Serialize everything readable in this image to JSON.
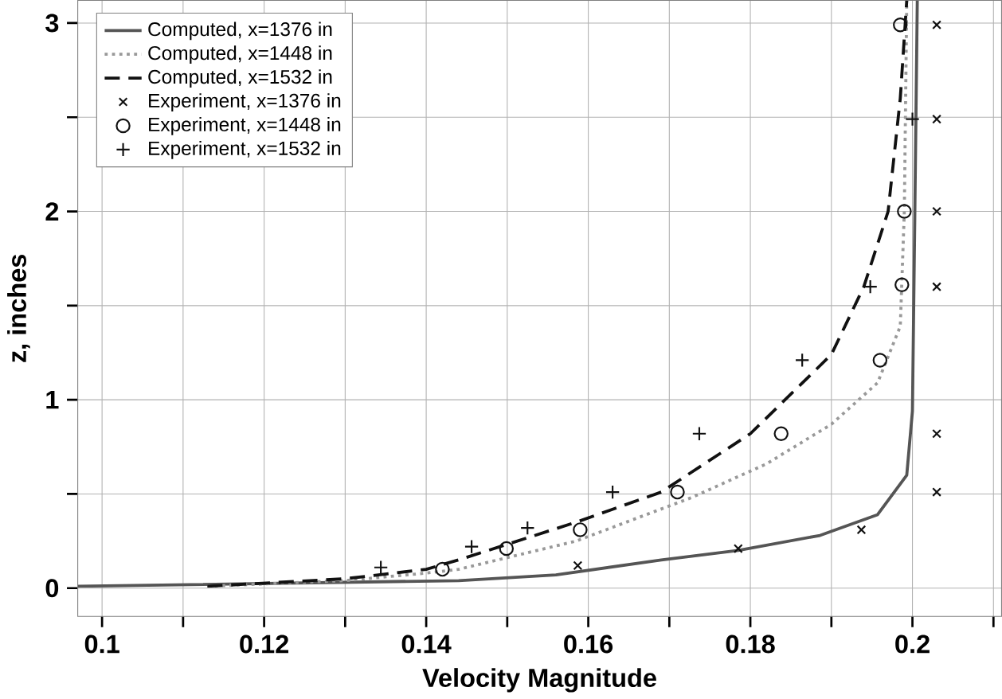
{
  "chart_data": {
    "type": "line",
    "xlabel": "Velocity Magnitude",
    "ylabel": "z, inches",
    "xlim": [
      0.097,
      0.211
    ],
    "ylim": [
      -0.15,
      3.12
    ],
    "xticks": [
      0.1,
      {
        "value": 0.11,
        "label": null
      },
      0.12,
      {
        "value": 0.13,
        "label": null
      },
      0.14,
      {
        "value": 0.15,
        "label": null
      },
      0.16,
      {
        "value": 0.17,
        "label": null
      },
      0.18,
      {
        "value": 0.19,
        "label": null
      },
      0.2,
      {
        "value": 0.21,
        "label": null
      }
    ],
    "yticks": [
      0,
      {
        "value": 0.5,
        "label": null
      },
      1,
      {
        "value": 1.5,
        "label": null
      },
      2,
      {
        "value": 2.5,
        "label": null
      },
      3
    ],
    "grid": true,
    "legend": "top left",
    "series": [
      {
        "name": "Computed, x=1376 in",
        "line_style": "solid",
        "color": "#555555",
        "x": [
          0.097,
          0.144,
          0.156,
          0.169,
          0.1785,
          0.1886,
          0.1957,
          0.1993,
          0.2,
          0.2003,
          0.2006
        ],
        "values": [
          0.01,
          0.04,
          0.07,
          0.15,
          0.2,
          0.28,
          0.39,
          0.6,
          0.94,
          2.0,
          3.12
        ]
      },
      {
        "name": "Computed, x=1448 in",
        "line_style": "dotted",
        "color": "#999999",
        "x": [
          0.113,
          0.13,
          0.14,
          0.144,
          0.1585,
          0.1727,
          0.182,
          0.19,
          0.1957,
          0.1985,
          0.199,
          0.1993
        ],
        "values": [
          0.01,
          0.04,
          0.08,
          0.1,
          0.25,
          0.48,
          0.66,
          0.87,
          1.09,
          1.39,
          2.0,
          3.12
        ]
      },
      {
        "name": "Computed, x=1532 in",
        "line_style": "dashed",
        "color": "#111111",
        "x": [
          0.113,
          0.13,
          0.14,
          0.144,
          0.1585,
          0.169,
          0.18,
          0.19,
          0.194,
          0.197,
          0.1985,
          0.1993
        ],
        "values": [
          0.01,
          0.05,
          0.1,
          0.15,
          0.35,
          0.51,
          0.82,
          1.24,
          1.6,
          2.0,
          2.6,
          3.12
        ]
      },
      {
        "name": "Experiment, x=1376 in",
        "type": "scatter",
        "marker": "cross",
        "color": "#111111",
        "x": [
          0.1587,
          0.1785,
          0.1937,
          0.203,
          0.203,
          0.203,
          0.203,
          0.203,
          0.203
        ],
        "values": [
          0.12,
          0.21,
          0.31,
          0.51,
          0.82,
          1.6,
          2.0,
          2.49,
          2.99
        ]
      },
      {
        "name": "Experiment, x=1448 in",
        "type": "scatter",
        "marker": "circle",
        "color": "#111111",
        "x": [
          0.142,
          0.1499,
          0.159,
          0.171,
          0.1838,
          0.196,
          0.1987,
          0.199,
          0.1985
        ],
        "values": [
          0.1,
          0.21,
          0.31,
          0.51,
          0.82,
          1.21,
          1.61,
          2.0,
          2.99
        ]
      },
      {
        "name": "Experiment, x=1532 in",
        "type": "scatter",
        "marker": "plus",
        "color": "#111111",
        "x": [
          0.1344,
          0.1456,
          0.1525,
          0.163,
          0.1737,
          0.1864,
          0.1948,
          0.2
        ],
        "values": [
          0.11,
          0.22,
          0.32,
          0.51,
          0.82,
          1.21,
          1.6,
          2.49
        ]
      }
    ]
  }
}
